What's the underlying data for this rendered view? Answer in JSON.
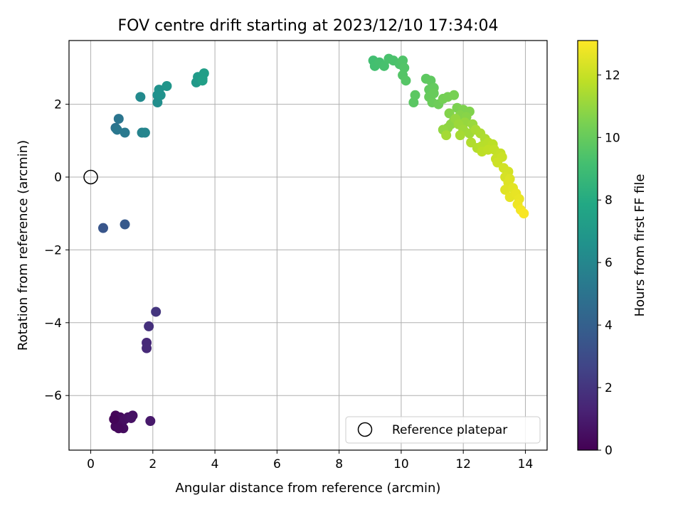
{
  "chart_data": {
    "type": "scatter",
    "title": "FOV centre drift starting at 2023/12/10 17:34:04",
    "xlabel": "Angular distance from reference (arcmin)",
    "ylabel": "Rotation from reference (arcmin)",
    "xlim": [
      -0.7,
      14.7
    ],
    "ylim": [
      -7.5,
      3.75
    ],
    "xticks": [
      0,
      2,
      4,
      6,
      8,
      10,
      12,
      14
    ],
    "yticks": [
      -6,
      -4,
      -2,
      0,
      2
    ],
    "xtick_labels": [
      "0",
      "2",
      "4",
      "6",
      "8",
      "10",
      "12",
      "14"
    ],
    "ytick_labels": [
      "−6",
      "−4",
      "−2",
      "0",
      "2"
    ],
    "grid": true,
    "colormap": "viridis",
    "colorbar": {
      "label": "Hours from first FF file",
      "range": [
        0,
        13.1
      ],
      "ticks": [
        0,
        2,
        4,
        6,
        8,
        10,
        12
      ],
      "tick_labels": [
        "0",
        "2",
        "4",
        "6",
        "8",
        "10",
        "12"
      ]
    },
    "legend": {
      "position": "lower-right",
      "entries": [
        "Reference platepar"
      ]
    },
    "reference_point": {
      "x": 0,
      "y": 0
    },
    "points": [
      [
        0.8,
        -6.55,
        0.2
      ],
      [
        0.85,
        -6.7,
        0.25
      ],
      [
        0.8,
        -6.85,
        0.3
      ],
      [
        0.95,
        -6.6,
        0.35
      ],
      [
        1.0,
        -6.75,
        0.4
      ],
      [
        1.05,
        -6.9,
        0.45
      ],
      [
        1.1,
        -6.65,
        0.5
      ],
      [
        1.2,
        -6.6,
        0.55
      ],
      [
        1.35,
        -6.55,
        0.6
      ],
      [
        1.3,
        -6.62,
        0.65
      ],
      [
        0.9,
        -6.9,
        0.3
      ],
      [
        0.75,
        -6.65,
        0.15
      ],
      [
        1.92,
        -6.7,
        0.9
      ],
      [
        1.8,
        -4.55,
        1.5
      ],
      [
        1.8,
        -4.7,
        1.55
      ],
      [
        1.87,
        -4.1,
        1.8
      ],
      [
        2.1,
        -3.7,
        2.0
      ],
      [
        0.4,
        -1.4,
        3.5
      ],
      [
        1.1,
        -1.3,
        3.7
      ],
      [
        0.8,
        1.35,
        5.0
      ],
      [
        0.9,
        1.6,
        5.1
      ],
      [
        0.85,
        1.3,
        5.2
      ],
      [
        1.1,
        1.22,
        5.3
      ],
      [
        1.65,
        1.22,
        5.8
      ],
      [
        1.75,
        1.22,
        5.9
      ],
      [
        1.6,
        2.2,
        6.2
      ],
      [
        2.15,
        2.05,
        6.4
      ],
      [
        2.15,
        2.25,
        6.5
      ],
      [
        2.2,
        2.4,
        6.6
      ],
      [
        2.25,
        2.25,
        6.6
      ],
      [
        2.45,
        2.5,
        6.8
      ],
      [
        3.4,
        2.6,
        7.0
      ],
      [
        3.45,
        2.75,
        7.1
      ],
      [
        3.6,
        2.7,
        7.2
      ],
      [
        3.65,
        2.85,
        7.3
      ],
      [
        3.6,
        2.65,
        7.35
      ],
      [
        9.1,
        3.2,
        9.1
      ],
      [
        9.15,
        3.05,
        9.15
      ],
      [
        9.3,
        3.15,
        9.2
      ],
      [
        9.45,
        3.05,
        9.25
      ],
      [
        9.6,
        3.25,
        9.3
      ],
      [
        9.75,
        3.2,
        9.35
      ],
      [
        9.95,
        3.1,
        9.4
      ],
      [
        10.05,
        3.2,
        9.45
      ],
      [
        10.1,
        3.0,
        9.5
      ],
      [
        10.05,
        2.8,
        9.55
      ],
      [
        10.15,
        2.65,
        9.6
      ],
      [
        10.4,
        2.05,
        9.7
      ],
      [
        10.45,
        2.25,
        9.75
      ],
      [
        10.8,
        2.7,
        9.8
      ],
      [
        10.95,
        2.65,
        9.85
      ],
      [
        10.9,
        2.4,
        9.9
      ],
      [
        11.05,
        2.45,
        9.95
      ],
      [
        10.9,
        2.2,
        10.0
      ],
      [
        11.0,
        2.05,
        10.1
      ],
      [
        11.05,
        2.3,
        10.05
      ],
      [
        11.2,
        2.0,
        10.2
      ],
      [
        11.35,
        2.15,
        10.3
      ],
      [
        11.5,
        2.2,
        10.35
      ],
      [
        11.7,
        2.25,
        10.4
      ],
      [
        11.8,
        1.9,
        10.5
      ],
      [
        12.0,
        1.85,
        10.55
      ],
      [
        12.2,
        1.8,
        10.6
      ],
      [
        11.55,
        1.75,
        10.65
      ],
      [
        11.9,
        1.7,
        10.7
      ],
      [
        12.1,
        1.65,
        10.75
      ],
      [
        11.7,
        1.55,
        10.8
      ],
      [
        11.6,
        1.45,
        10.85
      ],
      [
        11.5,
        1.35,
        10.9
      ],
      [
        11.35,
        1.3,
        10.95
      ],
      [
        11.75,
        1.6,
        11.0
      ],
      [
        12.05,
        1.5,
        11.05
      ],
      [
        12.3,
        1.45,
        11.1
      ],
      [
        11.85,
        1.45,
        11.15
      ],
      [
        12.0,
        1.3,
        11.2
      ],
      [
        12.2,
        1.2,
        11.25
      ],
      [
        11.45,
        1.15,
        11.3
      ],
      [
        11.9,
        1.15,
        11.35
      ],
      [
        12.4,
        1.3,
        11.4
      ],
      [
        12.55,
        1.2,
        11.45
      ],
      [
        12.7,
        1.05,
        11.5
      ],
      [
        12.25,
        0.95,
        11.55
      ],
      [
        12.45,
        0.8,
        11.6
      ],
      [
        12.6,
        0.85,
        11.65
      ],
      [
        12.8,
        0.95,
        11.7
      ],
      [
        12.95,
        0.9,
        11.75
      ],
      [
        12.6,
        0.7,
        11.8
      ],
      [
        12.8,
        0.75,
        11.85
      ],
      [
        13.0,
        0.75,
        11.9
      ],
      [
        13.2,
        0.65,
        11.95
      ],
      [
        13.05,
        0.5,
        12.0
      ],
      [
        13.25,
        0.55,
        12.05
      ],
      [
        13.1,
        0.4,
        12.1
      ],
      [
        13.3,
        0.25,
        12.2
      ],
      [
        13.45,
        0.15,
        12.25
      ],
      [
        13.35,
        0.0,
        12.3
      ],
      [
        13.5,
        -0.05,
        12.4
      ],
      [
        13.45,
        -0.15,
        12.45
      ],
      [
        13.35,
        -0.35,
        12.5
      ],
      [
        13.6,
        -0.3,
        12.55
      ],
      [
        13.5,
        -0.55,
        12.6
      ],
      [
        13.7,
        -0.45,
        12.65
      ],
      [
        13.8,
        -0.6,
        12.7
      ],
      [
        13.75,
        -0.75,
        12.8
      ],
      [
        13.85,
        -0.9,
        12.9
      ],
      [
        13.95,
        -1.0,
        13.0
      ]
    ]
  }
}
